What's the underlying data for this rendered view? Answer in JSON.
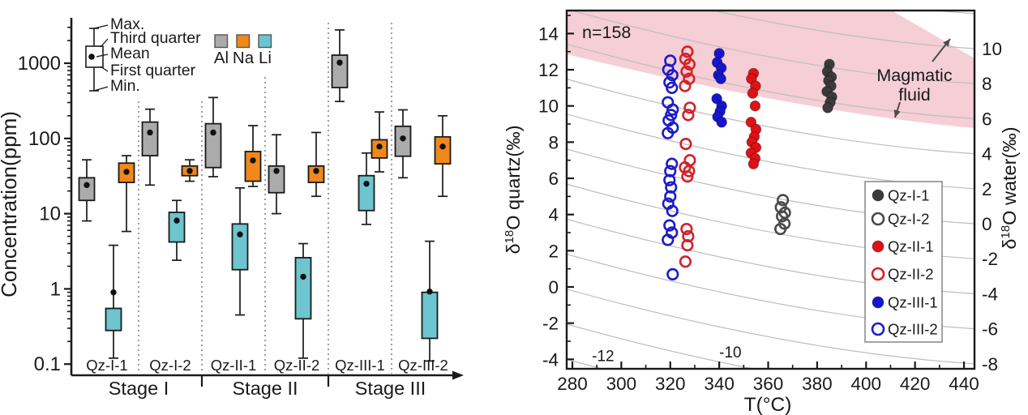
{
  "figure": {
    "background": "#ffffff"
  },
  "chart_data": [
    {
      "type": "box",
      "title": "",
      "ylabel": "Concentration(ppm)",
      "yscale": "log",
      "ylim": [
        0.08,
        4000
      ],
      "ytick_labels": [
        "1000",
        "100",
        "10",
        "1",
        "0.1"
      ],
      "ytick_values": [
        1000,
        100,
        10,
        1,
        0.1
      ],
      "categories": [
        "Qz-I-1",
        "Qz-I-2",
        "Qz-II-1",
        "Qz-II-2",
        "Qz-III-1",
        "Qz-III-2"
      ],
      "stages": [
        {
          "label": "Stage I",
          "span": [
            0,
            2
          ]
        },
        {
          "label": "Stage II",
          "span": [
            2,
            4
          ]
        },
        {
          "label": "Stage III",
          "span": [
            4,
            6
          ]
        }
      ],
      "anatomy_legend": {
        "labels": [
          "Max.",
          "Third quarter",
          "Mean",
          "First quarter",
          "Min."
        ]
      },
      "color_legend": [
        "Al",
        "Na",
        "Li"
      ],
      "series": [
        {
          "name": "Al",
          "color": "#ababab",
          "offset": -25,
          "boxes": [
            {
              "min": 8,
              "q1": 15,
              "mean": 24,
              "q3": 30,
              "max": 52
            },
            {
              "min": 24,
              "q1": 59,
              "mean": 120,
              "q3": 165,
              "max": 245
            },
            {
              "min": 31,
              "q1": 41,
              "mean": 120,
              "q3": 157,
              "max": 350
            },
            {
              "min": 10,
              "q1": 19,
              "mean": 37,
              "q3": 43,
              "max": 112
            },
            {
              "min": 310,
              "q1": 475,
              "mean": 1020,
              "q3": 1280,
              "max": 2770
            },
            {
              "min": 30,
              "q1": 58,
              "mean": 100,
              "q3": 145,
              "max": 240
            }
          ]
        },
        {
          "name": "Na",
          "color": "#f0881c",
          "offset": 24,
          "boxes": [
            {
              "min": 5.8,
              "q1": 26,
              "mean": 36,
              "q3": 47,
              "max": 59
            },
            {
              "min": 27,
              "q1": 32,
              "mean": 37,
              "q3": 43,
              "max": 52
            },
            {
              "min": 23,
              "q1": 27,
              "mean": 51,
              "q3": 67,
              "max": 148
            },
            {
              "min": 17,
              "q1": 26,
              "mean": 37,
              "q3": 43,
              "max": 120
            },
            {
              "min": 36,
              "q1": 55,
              "mean": 78,
              "q3": 96,
              "max": 225
            },
            {
              "min": 17,
              "q1": 46,
              "mean": 78,
              "q3": 105,
              "max": 200
            }
          ]
        },
        {
          "name": "Li",
          "color": "#6cc5cf",
          "offset": 8,
          "boxes": [
            {
              "min": 0.12,
              "q1": 0.28,
              "mean": 0.9,
              "q3": 0.55,
              "max": 3.8
            },
            {
              "min": 2.4,
              "q1": 4.2,
              "mean": 8.1,
              "q3": 10.4,
              "max": 15
            },
            {
              "min": 0.45,
              "q1": 1.8,
              "mean": 5.3,
              "q3": 7.3,
              "max": 22
            },
            {
              "min": 0.12,
              "q1": 0.4,
              "mean": 1.45,
              "q3": 2.6,
              "max": 4.0
            },
            {
              "min": 7.2,
              "q1": 11,
              "mean": 25,
              "q3": 32,
              "max": 64
            },
            {
              "min": 0.11,
              "q1": 0.22,
              "mean": 0.92,
              "q3": 0.9,
              "max": 4.3
            }
          ]
        }
      ]
    },
    {
      "type": "scatter",
      "xlabel": "T(°C)",
      "ylabel_left": {
        "pre": "δ",
        "sup": "18",
        "post": "O quartz(‰)"
      },
      "ylabel_right": {
        "pre": "δ",
        "sup": "18",
        "post": "O water(‰)"
      },
      "xlim": [
        280,
        440
      ],
      "xticks": [
        280,
        300,
        320,
        340,
        360,
        380,
        400,
        420,
        440
      ],
      "ylim_left": [
        -4.5,
        15.3
      ],
      "yticks_left": [
        -4,
        -2,
        0,
        2,
        4,
        6,
        8,
        10,
        12,
        14
      ],
      "yticks_right": [
        10,
        8,
        6,
        4,
        2,
        0,
        -2,
        -4,
        -6,
        -8
      ],
      "annotation": "n=158",
      "band_label_line1": "Magmatic",
      "band_label_line2": "fluid",
      "band_color": "#f6ced5",
      "isoline_color": "#bdbdbd",
      "isoline_values": [
        14,
        12,
        10,
        8,
        6,
        4,
        2,
        0,
        -2,
        -4,
        -6,
        -8,
        -10,
        -12
      ],
      "isoline_labels": [
        {
          "text": "-12",
          "T": 288,
          "y_quartz": -4.1
        },
        {
          "text": "-10",
          "T": 340,
          "y_quartz": -3.9
        }
      ],
      "series": [
        {
          "name": "Qz-I-1",
          "marker": "filled",
          "color": "#3b3b3b",
          "T": 385,
          "values": [
            12.3,
            11.9,
            11.6,
            11.4,
            11.1,
            10.8,
            10.5,
            10.2,
            9.9
          ]
        },
        {
          "name": "Qz-I-2",
          "marker": "open",
          "color": "#4a4a4a",
          "T": 366,
          "values": [
            4.8,
            4.4,
            4.1,
            3.9,
            3.5,
            3.2
          ]
        },
        {
          "name": "Qz-II-1",
          "marker": "filled",
          "color": "#e01216",
          "T": 354,
          "values": [
            11.8,
            11.5,
            11.1,
            10.7,
            10.0,
            9.1,
            8.7,
            8.3,
            8.0,
            7.7,
            7.4,
            7.1,
            6.8
          ]
        },
        {
          "name": "Qz-II-2",
          "marker": "open",
          "color": "#d2232a",
          "T": 327,
          "values": [
            13.0,
            12.6,
            12.3,
            11.9,
            11.5,
            11.1,
            9.9,
            9.5,
            7.9,
            7.0,
            6.6,
            6.4,
            6.1,
            3.2,
            2.8,
            2.3,
            1.4
          ]
        },
        {
          "name": "Qz-III-1",
          "marker": "filled",
          "color": "#1616d0",
          "T": 340,
          "values": [
            12.9,
            12.4,
            12.1,
            11.7,
            11.5,
            10.4,
            10.0,
            9.7,
            9.4,
            9.1
          ]
        },
        {
          "name": "Qz-III-2",
          "marker": "open",
          "color": "#1c1cc8",
          "T": 320,
          "values": [
            12.5,
            12.0,
            11.7,
            11.3,
            11.0,
            10.2,
            9.8,
            9.5,
            9.2,
            8.8,
            8.5,
            6.8,
            6.4,
            5.9,
            5.5,
            5.0,
            4.6,
            4.2,
            3.4,
            3.0,
            2.6,
            0.7
          ]
        }
      ]
    }
  ]
}
